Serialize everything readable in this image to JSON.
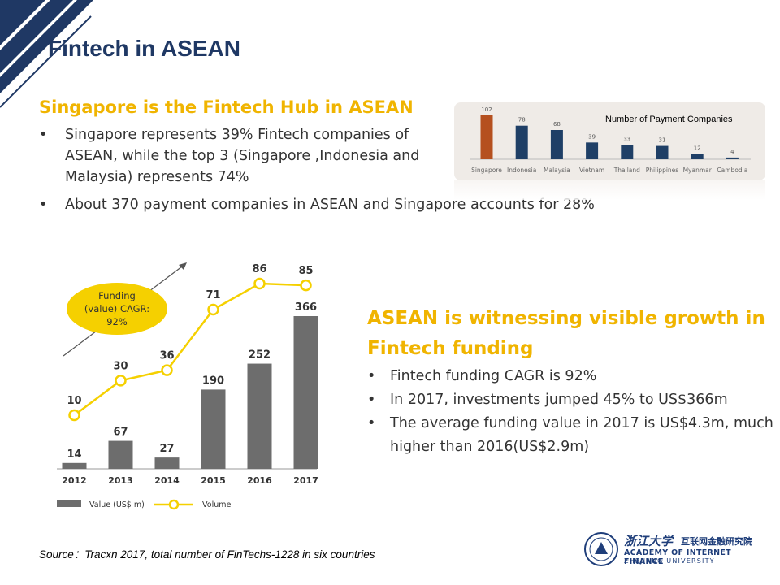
{
  "header": {
    "title": "Fintech in ASEAN"
  },
  "section_hub": {
    "heading": "Singapore is the Fintech Hub in ASEAN",
    "bullet1": "Singapore represents 39% Fintech companies of ASEAN, while the top 3 (Singapore ,Indonesia and Malaysia) represents 74%",
    "bullet2": "About 370 payment companies in ASEAN and Singapore accounts for 28%"
  },
  "section_growth": {
    "heading": "ASEAN is witnessing visible growth in Fintech funding",
    "bullets": [
      "Fintech funding CAGR is 92%",
      "In 2017, investments jumped 45% to US$366m",
      "The average funding value in 2017 is US$4.3m, much higher than 2016(US$2.9m)"
    ]
  },
  "source": "Source：Tracxn 2017, total number of FinTechs-1228 in six countries",
  "logo": {
    "chinese_name": "浙江大学",
    "chinese_institute": "互联网金融研究院",
    "english_name": "ACADEMY OF INTERNET FINANCE",
    "english_university": "ZHEJIANG UNIVERSITY"
  },
  "chart_data": [
    {
      "type": "bar",
      "title": "Number of Payment Companies",
      "categories": [
        "Singapore",
        "Indonesia",
        "Malaysia",
        "Vietnam",
        "Thailand",
        "Philippines",
        "Myanmar",
        "Cambodia"
      ],
      "values": [
        102,
        78,
        68,
        39,
        33,
        31,
        12,
        4
      ],
      "ylim": [
        0,
        102
      ],
      "colors": {
        "highlight": "#b5501f",
        "default": "#1f3f66"
      },
      "grid": false
    },
    {
      "type": "bar+line",
      "categories": [
        "2012",
        "2013",
        "2014",
        "2015",
        "2016",
        "2017"
      ],
      "series": [
        {
          "name": "Value (US$ m)",
          "type": "bar",
          "values": [
            14,
            67,
            27,
            190,
            252,
            366
          ],
          "color": "#6d6d6d"
        },
        {
          "name": "Volume",
          "type": "line",
          "values": [
            10,
            30,
            36,
            71,
            86,
            85
          ],
          "color": "#f5d000"
        }
      ],
      "annotation": "Funding (value) CAGR: 92%",
      "grid": false
    }
  ]
}
